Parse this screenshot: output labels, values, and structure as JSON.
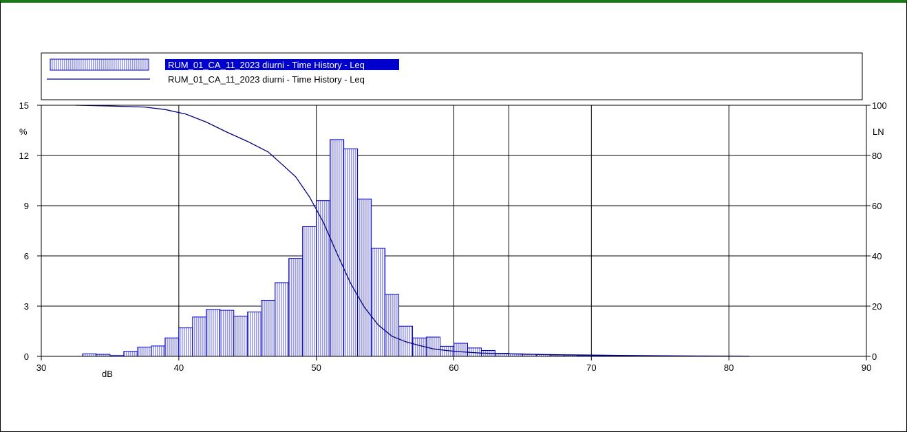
{
  "chart_data": {
    "type": "bar",
    "legend": {
      "placement": "top",
      "entries": [
        {
          "label": "RUM_01_CA_11_2023 diurni - Time History - Leq",
          "kind": "bar",
          "highlighted": true
        },
        {
          "label": "RUM_01_CA_11_2023 diurni - Time History - Leq",
          "kind": "line",
          "highlighted": false
        }
      ]
    },
    "xlabel": "dB",
    "ylabel_left": "%",
    "ylabel_right": "LN",
    "xlim": [
      30,
      90
    ],
    "ylim_left": [
      0,
      15
    ],
    "ylim_right": [
      0,
      100
    ],
    "x_ticks": [
      30,
      40,
      50,
      60,
      70,
      80,
      90
    ],
    "x_gridlines": [
      40,
      50,
      60,
      64,
      70,
      80
    ],
    "y_left_ticks": [
      0,
      3,
      6,
      9,
      12,
      15
    ],
    "y_right_ticks": [
      0,
      20,
      40,
      60,
      80,
      100
    ],
    "grid": true,
    "colors": {
      "bar_stroke": "#0000cc",
      "bar_fill": "#b8b8ee",
      "line": "#000080",
      "legend_highlight": "#0000cc",
      "frame_top": "#1a7a1a"
    },
    "bin_width": 1,
    "bins": [
      {
        "x": 32.5,
        "value": 0.0
      },
      {
        "x": 33.5,
        "value": 0.15
      },
      {
        "x": 34.5,
        "value": 0.12
      },
      {
        "x": 35.5,
        "value": 0.05
      },
      {
        "x": 36.5,
        "value": 0.3
      },
      {
        "x": 37.5,
        "value": 0.55
      },
      {
        "x": 38.5,
        "value": 0.62
      },
      {
        "x": 39.5,
        "value": 1.1
      },
      {
        "x": 40.5,
        "value": 1.7
      },
      {
        "x": 41.5,
        "value": 2.35
      },
      {
        "x": 42.5,
        "value": 2.8
      },
      {
        "x": 43.5,
        "value": 2.75
      },
      {
        "x": 44.5,
        "value": 2.4
      },
      {
        "x": 45.5,
        "value": 2.65
      },
      {
        "x": 46.5,
        "value": 3.35
      },
      {
        "x": 47.5,
        "value": 4.4
      },
      {
        "x": 48.5,
        "value": 5.85
      },
      {
        "x": 49.5,
        "value": 7.75
      },
      {
        "x": 50.5,
        "value": 9.3
      },
      {
        "x": 51.5,
        "value": 12.95
      },
      {
        "x": 52.5,
        "value": 12.4
      },
      {
        "x": 53.5,
        "value": 9.4
      },
      {
        "x": 54.5,
        "value": 6.45
      },
      {
        "x": 55.5,
        "value": 3.7
      },
      {
        "x": 56.5,
        "value": 1.8
      },
      {
        "x": 57.5,
        "value": 1.1
      },
      {
        "x": 58.5,
        "value": 1.15
      },
      {
        "x": 59.5,
        "value": 0.6
      },
      {
        "x": 60.5,
        "value": 0.78
      },
      {
        "x": 61.5,
        "value": 0.5
      },
      {
        "x": 62.5,
        "value": 0.35
      },
      {
        "x": 63.5,
        "value": 0.18
      },
      {
        "x": 64.5,
        "value": 0.15
      },
      {
        "x": 65.5,
        "value": 0.12
      },
      {
        "x": 66.5,
        "value": 0.1
      },
      {
        "x": 67.5,
        "value": 0.08
      },
      {
        "x": 68.5,
        "value": 0.07
      },
      {
        "x": 69.5,
        "value": 0.05
      },
      {
        "x": 70.5,
        "value": 0.04
      },
      {
        "x": 71.5,
        "value": 0.03
      },
      {
        "x": 72.5,
        "value": 0.03
      },
      {
        "x": 73.5,
        "value": 0.02
      },
      {
        "x": 74.5,
        "value": 0.02
      },
      {
        "x": 75.5,
        "value": 0.02
      },
      {
        "x": 76.5,
        "value": 0.01
      },
      {
        "x": 77.5,
        "value": 0.01
      },
      {
        "x": 78.5,
        "value": 0.01
      },
      {
        "x": 79.5,
        "value": 0.01
      },
      {
        "x": 80.5,
        "value": 0.01
      }
    ],
    "ln_curve": [
      [
        32.5,
        100
      ],
      [
        35,
        99.7
      ],
      [
        37.5,
        99.3
      ],
      [
        39,
        98.3
      ],
      [
        40.5,
        96.5
      ],
      [
        42,
        93.3
      ],
      [
        43.5,
        89.3
      ],
      [
        45,
        85.6
      ],
      [
        46.5,
        81.4
      ],
      [
        47.5,
        76.5
      ],
      [
        48.5,
        71.5
      ],
      [
        49.5,
        63.5
      ],
      [
        50.5,
        53.5
      ],
      [
        51.5,
        41.0
      ],
      [
        52.5,
        29.0
      ],
      [
        53.5,
        19.5
      ],
      [
        54.5,
        12.5
      ],
      [
        55.5,
        8.0
      ],
      [
        56.5,
        5.8
      ],
      [
        57.5,
        4.3
      ],
      [
        58.5,
        3.0
      ],
      [
        59.5,
        2.3
      ],
      [
        60.5,
        1.8
      ],
      [
        62,
        1.3
      ],
      [
        64,
        1.0
      ],
      [
        66,
        0.8
      ],
      [
        68,
        0.6
      ],
      [
        70,
        0.5
      ],
      [
        72,
        0.35
      ],
      [
        75,
        0.25
      ],
      [
        78,
        0.15
      ],
      [
        80,
        0.08
      ],
      [
        81.5,
        0.0
      ]
    ]
  }
}
